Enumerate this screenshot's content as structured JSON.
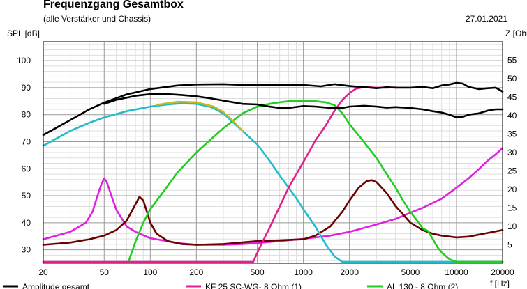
{
  "header": {
    "title": "Frequenzgang Gesamtbox",
    "subtitle": "(alle Verstärker und Chassis)",
    "date": "27.01.2021"
  },
  "chart_data": {
    "type": "line",
    "xlabel": "f [Hz]",
    "ylabel": "SPL [dB]",
    "y2label": "Z [Ohm]",
    "x_scale": "log",
    "xlim": [
      20,
      20000
    ],
    "ylim": [
      25,
      107
    ],
    "y2lim": [
      0,
      60
    ],
    "x_ticks": [
      20,
      50,
      100,
      200,
      500,
      1000,
      2000,
      5000,
      10000,
      20000
    ],
    "y_ticks": [
      30,
      40,
      50,
      60,
      70,
      80,
      90,
      100
    ],
    "y2_ticks": [
      5,
      10,
      15,
      20,
      25,
      30,
      35,
      40,
      45,
      50,
      55
    ],
    "grid": true,
    "legend_position": "bottom",
    "colors": {
      "amplitude": "#000000",
      "kf25": "#e0208c",
      "al130": "#22cc22",
      "cyan": "#22bbcc",
      "olive": "#c8b820",
      "imp_magenta": "#e020e0",
      "imp_maroon": "#6a0000",
      "grid_major": "#999999",
      "grid_minor": "#dddddd"
    },
    "series": [
      {
        "key": "amplitude",
        "name": "Amplitude gesamt",
        "axis": "left",
        "color": "#000000",
        "points": [
          [
            20,
            72.5
          ],
          [
            30,
            78
          ],
          [
            40,
            82
          ],
          [
            50,
            84.5
          ],
          [
            70,
            87.5
          ],
          [
            100,
            89.5
          ],
          [
            150,
            90.8
          ],
          [
            200,
            91.2
          ],
          [
            300,
            91.3
          ],
          [
            400,
            91
          ],
          [
            500,
            91
          ],
          [
            700,
            91
          ],
          [
            1000,
            91
          ],
          [
            1300,
            90.5
          ],
          [
            1600,
            91.3
          ],
          [
            2000,
            90.6
          ],
          [
            2500,
            90.2
          ],
          [
            3000,
            89.8
          ],
          [
            3500,
            90.2
          ],
          [
            4000,
            90
          ],
          [
            5000,
            90
          ],
          [
            6000,
            90.3
          ],
          [
            7000,
            89.8
          ],
          [
            8000,
            90.8
          ],
          [
            9000,
            91.2
          ],
          [
            10000,
            91.8
          ],
          [
            11000,
            91.5
          ],
          [
            12000,
            90.3
          ],
          [
            14000,
            89.5
          ],
          [
            16000,
            89.8
          ],
          [
            18000,
            90
          ],
          [
            19000,
            89.3
          ],
          [
            20000,
            88.5
          ]
        ]
      },
      {
        "key": "amplitude_alt",
        "name": "",
        "axis": "left",
        "color": "#000000",
        "points": [
          [
            50,
            84
          ],
          [
            60,
            85.5
          ],
          [
            80,
            87
          ],
          [
            100,
            87.6
          ],
          [
            130,
            87.6
          ],
          [
            160,
            87.3
          ],
          [
            200,
            86.8
          ],
          [
            250,
            86
          ],
          [
            300,
            85.2
          ],
          [
            400,
            84
          ],
          [
            500,
            83.8
          ],
          [
            600,
            83
          ],
          [
            700,
            82.5
          ],
          [
            800,
            82.5
          ],
          [
            1000,
            83.2
          ],
          [
            1200,
            83
          ],
          [
            1500,
            82.5
          ],
          [
            1800,
            82.5
          ],
          [
            2000,
            83
          ],
          [
            2500,
            83.3
          ],
          [
            3000,
            83
          ],
          [
            3500,
            82.6
          ],
          [
            4000,
            82.8
          ],
          [
            5000,
            82.5
          ],
          [
            6000,
            82
          ],
          [
            7000,
            81.3
          ],
          [
            8000,
            80.8
          ],
          [
            9000,
            80
          ],
          [
            10000,
            79
          ],
          [
            11000,
            79.2
          ],
          [
            12000,
            80
          ],
          [
            14000,
            80.5
          ],
          [
            16000,
            81.5
          ],
          [
            18000,
            82
          ],
          [
            20000,
            82
          ]
        ]
      },
      {
        "key": "kf25",
        "name": "KF 25 SC-WG- 8 Ohm",
        "tag": "(1)",
        "axis": "left",
        "color": "#e0208c",
        "points": [
          [
            20,
            25.5
          ],
          [
            470,
            25.5
          ],
          [
            520,
            31
          ],
          [
            600,
            38
          ],
          [
            700,
            46
          ],
          [
            800,
            53
          ],
          [
            900,
            58
          ],
          [
            1000,
            62.5
          ],
          [
            1200,
            70.5
          ],
          [
            1400,
            76
          ],
          [
            1600,
            81.5
          ],
          [
            1800,
            85.5
          ],
          [
            2000,
            88
          ],
          [
            2200,
            89.6
          ],
          [
            2500,
            90.3
          ],
          [
            3000,
            90
          ],
          [
            3500,
            90
          ],
          [
            4000,
            90.1
          ]
        ]
      },
      {
        "key": "al130",
        "name": "AL 130 - 8 Ohm",
        "tag": "(2)",
        "axis": "left",
        "color": "#22cc22",
        "points": [
          [
            72,
            25.5
          ],
          [
            80,
            33
          ],
          [
            90,
            40
          ],
          [
            100,
            45
          ],
          [
            120,
            51
          ],
          [
            150,
            58.5
          ],
          [
            200,
            66
          ],
          [
            250,
            71
          ],
          [
            300,
            75
          ],
          [
            400,
            80.5
          ],
          [
            500,
            83
          ],
          [
            600,
            84
          ],
          [
            700,
            84.6
          ],
          [
            800,
            85
          ],
          [
            1000,
            85.1
          ],
          [
            1200,
            85
          ],
          [
            1400,
            84.6
          ],
          [
            1600,
            83.5
          ],
          [
            1800,
            80.5
          ],
          [
            2000,
            76.5
          ],
          [
            2400,
            71
          ],
          [
            3000,
            64
          ],
          [
            3500,
            58
          ],
          [
            4000,
            53
          ],
          [
            4500,
            48
          ],
          [
            5000,
            44
          ],
          [
            5500,
            41
          ],
          [
            6000,
            38
          ],
          [
            6500,
            37
          ],
          [
            7000,
            34
          ],
          [
            7500,
            31
          ],
          [
            8000,
            29
          ],
          [
            9000,
            26.5
          ],
          [
            10000,
            25.5
          ],
          [
            20000,
            25.5
          ]
        ]
      },
      {
        "key": "cyan",
        "name": "",
        "axis": "left",
        "color": "#22bbcc",
        "points": [
          [
            20,
            68.5
          ],
          [
            30,
            74
          ],
          [
            40,
            77
          ],
          [
            50,
            79
          ],
          [
            70,
            81.3
          ],
          [
            100,
            83
          ],
          [
            130,
            83.8
          ],
          [
            160,
            84.2
          ],
          [
            200,
            84
          ],
          [
            250,
            82.8
          ],
          [
            300,
            80.5
          ],
          [
            350,
            77
          ],
          [
            400,
            74
          ],
          [
            500,
            69
          ],
          [
            600,
            63
          ],
          [
            700,
            57.5
          ],
          [
            800,
            53
          ],
          [
            900,
            49
          ],
          [
            1000,
            45
          ],
          [
            1200,
            38.5
          ],
          [
            1400,
            32
          ],
          [
            1600,
            27.5
          ],
          [
            1800,
            25.5
          ],
          [
            20000,
            25.5
          ]
        ]
      },
      {
        "key": "olive",
        "name": "",
        "axis": "left",
        "color": "#c8b820",
        "points": [
          [
            110,
            83.6
          ],
          [
            150,
            84.8
          ],
          [
            200,
            84.6
          ],
          [
            260,
            83
          ],
          [
            300,
            81
          ],
          [
            350,
            77.5
          ],
          [
            400,
            74
          ]
        ]
      },
      {
        "key": "imp_magenta",
        "name": "",
        "axis": "right",
        "color": "#e020e0",
        "points": [
          [
            20,
            6.5
          ],
          [
            30,
            8.5
          ],
          [
            38,
            11
          ],
          [
            42,
            14
          ],
          [
            45,
            18
          ],
          [
            48,
            21.5
          ],
          [
            50,
            23
          ],
          [
            52,
            22
          ],
          [
            56,
            18
          ],
          [
            60,
            14.5
          ],
          [
            70,
            10
          ],
          [
            80,
            8.5
          ],
          [
            100,
            6.8
          ],
          [
            150,
            5.5
          ],
          [
            200,
            5
          ],
          [
            300,
            5
          ],
          [
            400,
            5.2
          ],
          [
            500,
            5.5
          ],
          [
            700,
            6
          ],
          [
            1000,
            6.6
          ],
          [
            1500,
            7.5
          ],
          [
            2000,
            8.5
          ],
          [
            3000,
            10.5
          ],
          [
            4000,
            12
          ],
          [
            5000,
            13.7
          ],
          [
            6000,
            15
          ],
          [
            8000,
            17.5
          ],
          [
            10000,
            20.5
          ],
          [
            12000,
            23
          ],
          [
            14000,
            25.5
          ],
          [
            16000,
            27.8
          ],
          [
            18000,
            29.5
          ],
          [
            20000,
            31.2
          ]
        ]
      },
      {
        "key": "imp_maroon",
        "name": "",
        "axis": "right",
        "color": "#6a0000",
        "points": [
          [
            20,
            5
          ],
          [
            30,
            5.6
          ],
          [
            40,
            6.5
          ],
          [
            50,
            7.5
          ],
          [
            60,
            9
          ],
          [
            70,
            11.5
          ],
          [
            80,
            16
          ],
          [
            85,
            18
          ],
          [
            90,
            17
          ],
          [
            95,
            14
          ],
          [
            100,
            11
          ],
          [
            110,
            8
          ],
          [
            130,
            6
          ],
          [
            160,
            5.2
          ],
          [
            200,
            5
          ],
          [
            300,
            5.2
          ],
          [
            500,
            6
          ],
          [
            700,
            6.2
          ],
          [
            1000,
            6.5
          ],
          [
            1200,
            7.5
          ],
          [
            1500,
            10
          ],
          [
            1800,
            14
          ],
          [
            2000,
            17
          ],
          [
            2300,
            20.5
          ],
          [
            2600,
            22.3
          ],
          [
            2800,
            22.5
          ],
          [
            3000,
            22
          ],
          [
            3500,
            19
          ],
          [
            4000,
            15.5
          ],
          [
            5000,
            11
          ],
          [
            6000,
            9
          ],
          [
            7000,
            8
          ],
          [
            8000,
            7.5
          ],
          [
            10000,
            7
          ],
          [
            12000,
            7.2
          ],
          [
            15000,
            8
          ],
          [
            20000,
            9
          ]
        ]
      }
    ]
  }
}
